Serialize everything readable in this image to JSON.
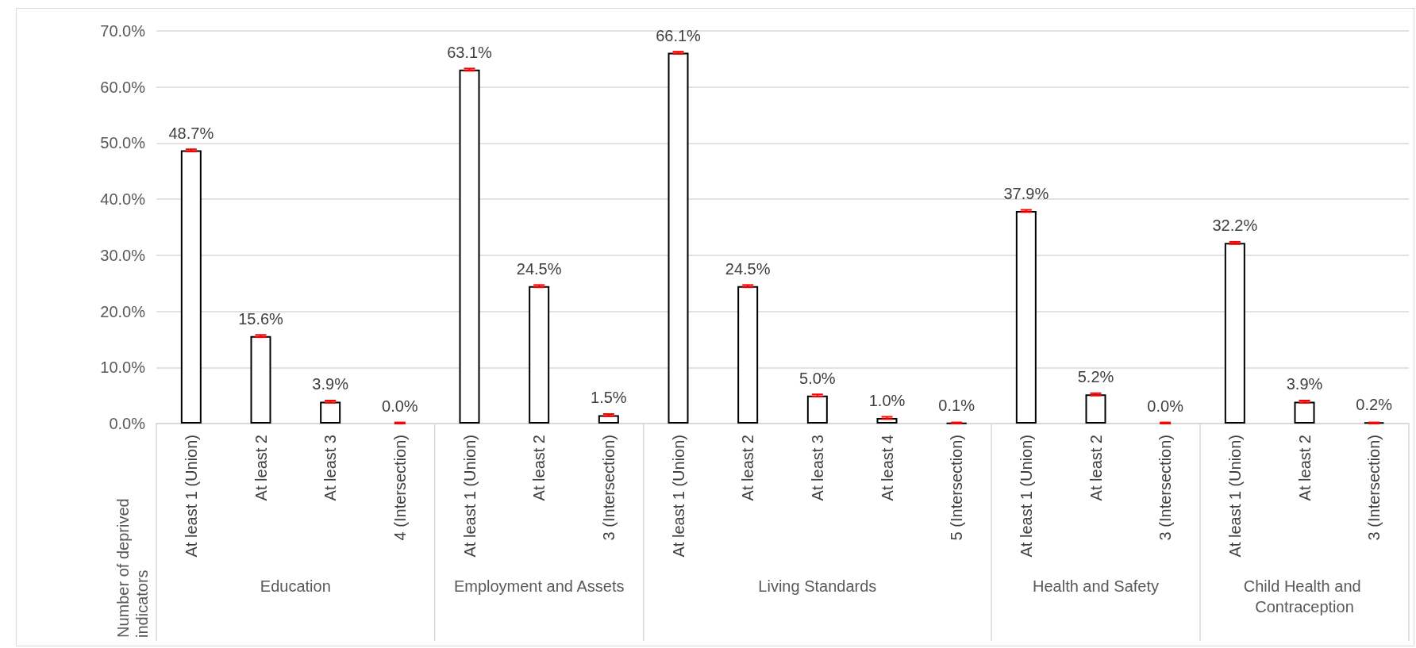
{
  "chart_data": {
    "type": "bar",
    "annotations": [
      "Number of deprived indicators",
      "Education",
      "Employment and Assets",
      "Living Standards",
      "Health and Safety",
      "Child Health and Contraception"
    ],
    "categories": [
      "At least 1 (Union)",
      "At least 2",
      "At least 3",
      "4 (Intersection)",
      "At least 1 (Union)",
      "At least 2",
      "3 (Intersection)",
      "At least 1 (Union)",
      "At least 2",
      "At least 3",
      "At least 4",
      "5 (Intersection)",
      "At least 1 (Union)",
      "At least 2",
      "3 (Intersection)",
      "At least 1 (Union)",
      "At least 2",
      "3 (Intersection)"
    ],
    "series": [
      {
        "color": "#ffffff",
        "values": [
          48.7,
          15.6,
          3.9,
          0.0,
          null,
          null,
          null,
          null,
          null,
          null,
          null,
          null,
          null,
          null,
          null,
          null,
          null,
          null
        ],
        "errors": [
          0.2,
          0.2,
          0.2,
          [
            0,
            0.2
          ],
          null,
          null,
          null,
          null,
          null,
          null,
          null,
          null,
          null,
          null,
          null,
          null,
          null,
          null
        ],
        "value_labels": [
          "48.7%",
          "15.6%",
          "3.9%",
          "0.0%",
          null,
          null,
          null,
          null,
          null,
          null,
          null,
          null,
          null,
          null,
          null,
          null,
          null,
          null
        ]
      },
      {
        "color": "#ffffff",
        "values": [
          null,
          null,
          null,
          null,
          63.1,
          24.5,
          1.5,
          null,
          null,
          null,
          null,
          null,
          null,
          null,
          null,
          null,
          null,
          null
        ],
        "errors": [
          null,
          null,
          null,
          null,
          0.2,
          0.2,
          0.2,
          null,
          null,
          null,
          null,
          null,
          null,
          null,
          null,
          null,
          null,
          null
        ],
        "value_labels": [
          null,
          null,
          null,
          null,
          "63.1%",
          "24.5%",
          "1.5%",
          null,
          null,
          null,
          null,
          null,
          null,
          null,
          null,
          null,
          null,
          null
        ]
      },
      {
        "color": "#ffffff",
        "colors": [
          null,
          null,
          null,
          null,
          null,
          null,
          null,
          "#ffffff",
          "#ffffff",
          "#ffffff",
          "#ffffff",
          "#000000",
          null,
          null,
          null,
          null,
          null,
          null
        ],
        "values": [
          null,
          null,
          null,
          null,
          null,
          null,
          null,
          66.1,
          24.5,
          5.0,
          1.0,
          0.1,
          null,
          null,
          null,
          null,
          null,
          null
        ],
        "errors": [
          null,
          null,
          null,
          null,
          null,
          null,
          null,
          0.2,
          0.2,
          0.2,
          0.2,
          [
            0,
            0.2
          ],
          null,
          null,
          null,
          null,
          null,
          null
        ],
        "value_labels": [
          null,
          null,
          null,
          null,
          null,
          null,
          null,
          "66.1%",
          "24.5%",
          "5.0%",
          "1.0%",
          "0.1%",
          null,
          null,
          null,
          null,
          null,
          null
        ]
      },
      {
        "color": "#ffffff",
        "values": [
          null,
          null,
          null,
          null,
          null,
          null,
          null,
          null,
          null,
          null,
          null,
          null,
          37.9,
          5.2,
          0.0,
          null,
          null,
          null
        ],
        "errors": [
          null,
          null,
          null,
          null,
          null,
          null,
          null,
          null,
          null,
          null,
          null,
          null,
          0.2,
          0.2,
          [
            0,
            0.2
          ],
          null,
          null,
          null
        ],
        "value_labels": [
          null,
          null,
          null,
          null,
          null,
          null,
          null,
          null,
          null,
          null,
          null,
          null,
          "37.9%",
          "5.2%",
          "0.0%",
          null,
          null,
          null
        ]
      },
      {
        "color": "#ffffff",
        "colors": [
          null,
          null,
          null,
          null,
          null,
          null,
          null,
          null,
          null,
          null,
          null,
          null,
          null,
          null,
          null,
          "#ffffff",
          "#ffffff",
          "#000000"
        ],
        "values": [
          null,
          null,
          null,
          null,
          null,
          null,
          null,
          null,
          null,
          null,
          null,
          null,
          null,
          null,
          null,
          32.2,
          3.9,
          0.2
        ],
        "errors": [
          null,
          null,
          null,
          null,
          null,
          null,
          null,
          null,
          null,
          null,
          null,
          null,
          null,
          null,
          null,
          0.2,
          0.2,
          [
            0,
            0.2
          ]
        ],
        "value_labels": [
          null,
          null,
          null,
          null,
          null,
          null,
          null,
          null,
          null,
          null,
          null,
          null,
          null,
          null,
          null,
          "32.2%",
          "3.9%",
          "0.2%"
        ]
      }
    ],
    "ylim": [
      0,
      70
    ],
    "yticks": [
      {
        "value": 0,
        "label": "0.0%"
      },
      {
        "value": 10,
        "label": "10.0%"
      },
      {
        "value": 20,
        "label": "20.0%"
      },
      {
        "value": 30,
        "label": "30.0%"
      },
      {
        "value": 40,
        "label": "40.0%"
      },
      {
        "value": 50,
        "label": "50.0%"
      },
      {
        "value": 60,
        "label": "60.0%"
      },
      {
        "value": 70,
        "label": "70.0%"
      }
    ],
    "grid": "y"
  }
}
